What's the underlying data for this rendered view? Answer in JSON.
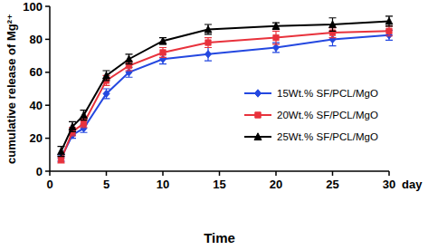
{
  "chart_data": {
    "type": "line",
    "x_label": "Time",
    "y_label": "cumulative release of Mg²⁺",
    "annotations": [
      "day"
    ],
    "x": [
      1,
      2,
      3,
      5,
      7,
      10,
      14,
      20,
      25,
      30
    ],
    "series": [
      {
        "name": "15Wt.% SF/PCL/MgO",
        "color": "#2448e0",
        "marker": "diamond",
        "values": [
          8,
          22,
          26,
          47,
          60,
          68,
          71,
          75,
          80,
          82.5
        ],
        "errors": [
          2,
          2,
          2.5,
          3,
          3,
          3,
          4,
          3,
          4,
          3
        ]
      },
      {
        "name": "20Wt.% SF/PCL/MgO",
        "color": "#e8323c",
        "marker": "square",
        "values": [
          7,
          24,
          29,
          55,
          64,
          72,
          78,
          81,
          84,
          85
        ],
        "errors": [
          2,
          2.5,
          2.5,
          3,
          3,
          3,
          3,
          4,
          3,
          3
        ]
      },
      {
        "name": "25Wt.% SF/PCL/MgO",
        "color": "#000000",
        "marker": "triangle",
        "values": [
          12,
          27,
          34,
          58,
          68,
          79,
          86,
          88,
          89,
          91
        ],
        "errors": [
          3,
          3,
          3,
          3,
          3,
          2,
          3,
          2,
          4,
          3
        ]
      }
    ],
    "xlim": [
      0,
      30
    ],
    "xticks": [
      0,
      5,
      10,
      15,
      20,
      25,
      30
    ],
    "ylim": [
      0,
      100
    ],
    "yticks": [
      0,
      20,
      40,
      60,
      80,
      100
    ],
    "grid": false,
    "legend": "lower right"
  }
}
